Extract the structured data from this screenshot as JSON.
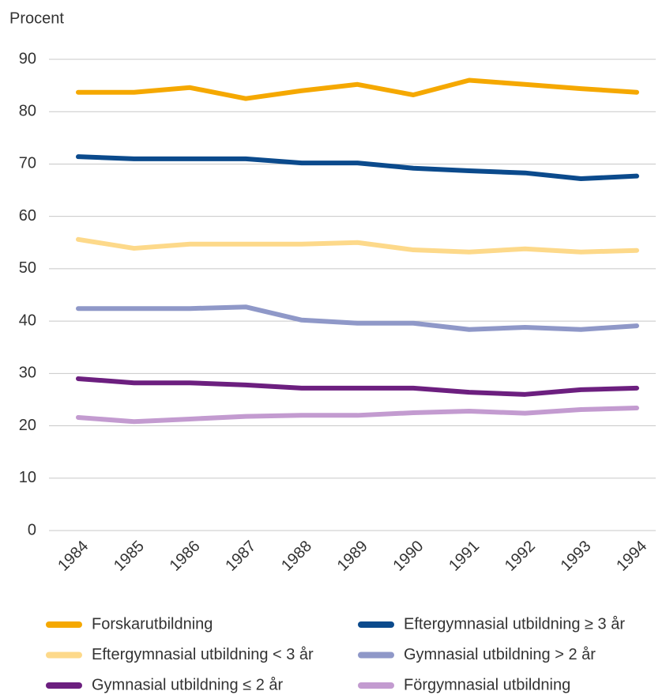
{
  "chart_data": {
    "type": "line",
    "y_label": "Procent",
    "categories": [
      "1984",
      "1985",
      "1986",
      "1987",
      "1988",
      "1989",
      "1990",
      "1991",
      "1992",
      "1993",
      "1994"
    ],
    "ylim": [
      0,
      90
    ],
    "yticks": [
      0,
      10,
      20,
      30,
      40,
      50,
      60,
      70,
      80,
      90
    ],
    "grid": true,
    "series": [
      {
        "name": "Forskarutbildning",
        "color": "#f5a800",
        "values": [
          83.7,
          83.7,
          84.6,
          82.5,
          84,
          85.2,
          83.2,
          86,
          85.2,
          84.4,
          83.7
        ]
      },
      {
        "name": "Eftergymnasial utbildning ≥ 3 år",
        "color": "#0b4a8c",
        "values": [
          71.4,
          71,
          71,
          71,
          70.2,
          70.2,
          69.2,
          68.7,
          68.3,
          67.2,
          67.7
        ]
      },
      {
        "name": "Eftergymnasial utbildning < 3 år",
        "color": "#fdd98a",
        "values": [
          55.6,
          53.9,
          54.7,
          54.7,
          54.7,
          55,
          53.6,
          53.2,
          53.8,
          53.2,
          53.5
        ]
      },
      {
        "name": "Gymnasial utbildning > 2 år",
        "color": "#8f98c8",
        "values": [
          42.4,
          42.4,
          42.4,
          42.7,
          40.2,
          39.6,
          39.6,
          38.4,
          38.8,
          38.4,
          39.1
        ]
      },
      {
        "name": "Gymnasial utbildning ≤ 2 år",
        "color": "#6c1f7f",
        "values": [
          29,
          28.2,
          28.2,
          27.8,
          27.2,
          27.2,
          27.2,
          26.4,
          26,
          26.9,
          27.2
        ]
      },
      {
        "name": "Förgymnasial utbildning",
        "color": "#c39bd0",
        "values": [
          21.6,
          20.8,
          21.3,
          21.8,
          22,
          22,
          22.5,
          22.8,
          22.4,
          23.1,
          23.4
        ]
      }
    ]
  }
}
